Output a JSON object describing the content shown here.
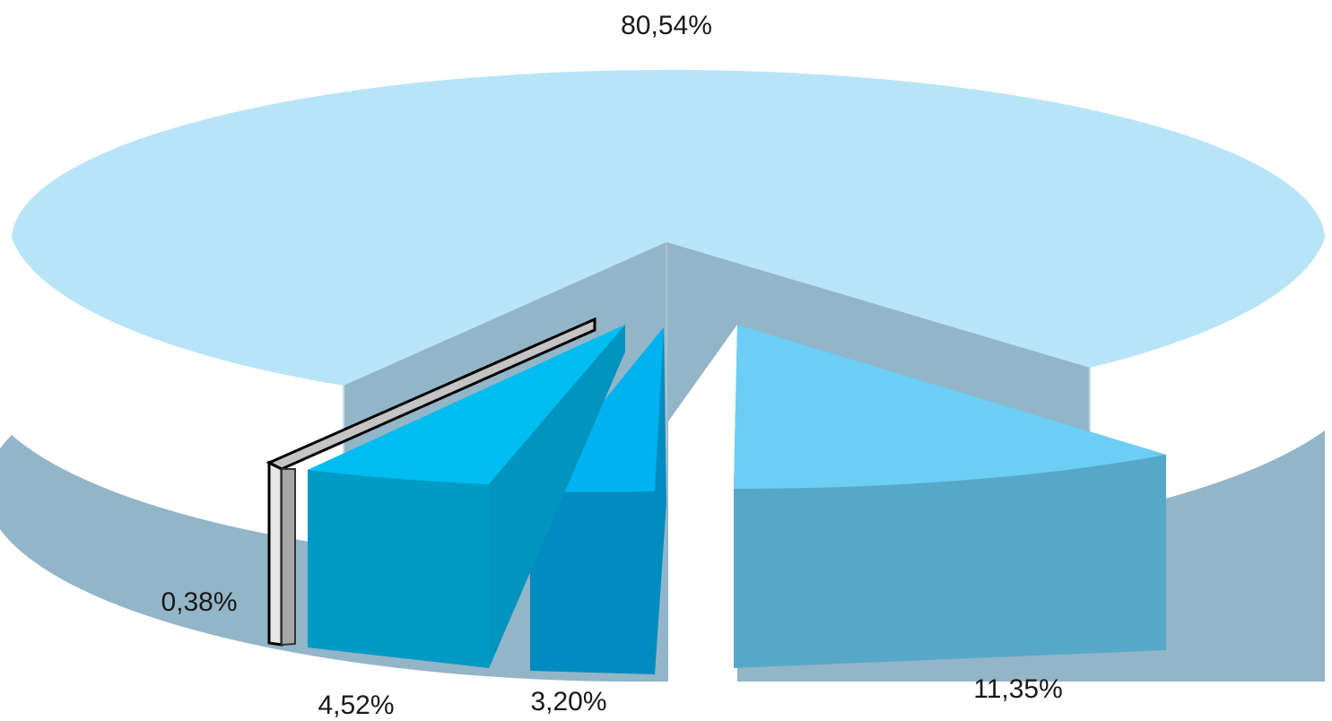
{
  "chart_data": {
    "type": "pie",
    "slices": [
      {
        "label": "80,54%",
        "value": 80.54,
        "top_color": "#b8e4f8",
        "side_color": "#93b5c8"
      },
      {
        "label": "11,35%",
        "value": 11.35,
        "top_color": "#6ccef4",
        "side_color": "#57a7c8"
      },
      {
        "label": "3,20%",
        "value": 3.2,
        "top_color": "#00b2ef",
        "side_color": "#008cc0"
      },
      {
        "label": "4,52%",
        "value": 4.52,
        "top_color": "#00bdf0",
        "side_color": "#009ac4"
      },
      {
        "label": "0,38%",
        "value": 0.38,
        "top_color": "#c4c4c4",
        "side_color": "#a6a6a6"
      }
    ]
  }
}
